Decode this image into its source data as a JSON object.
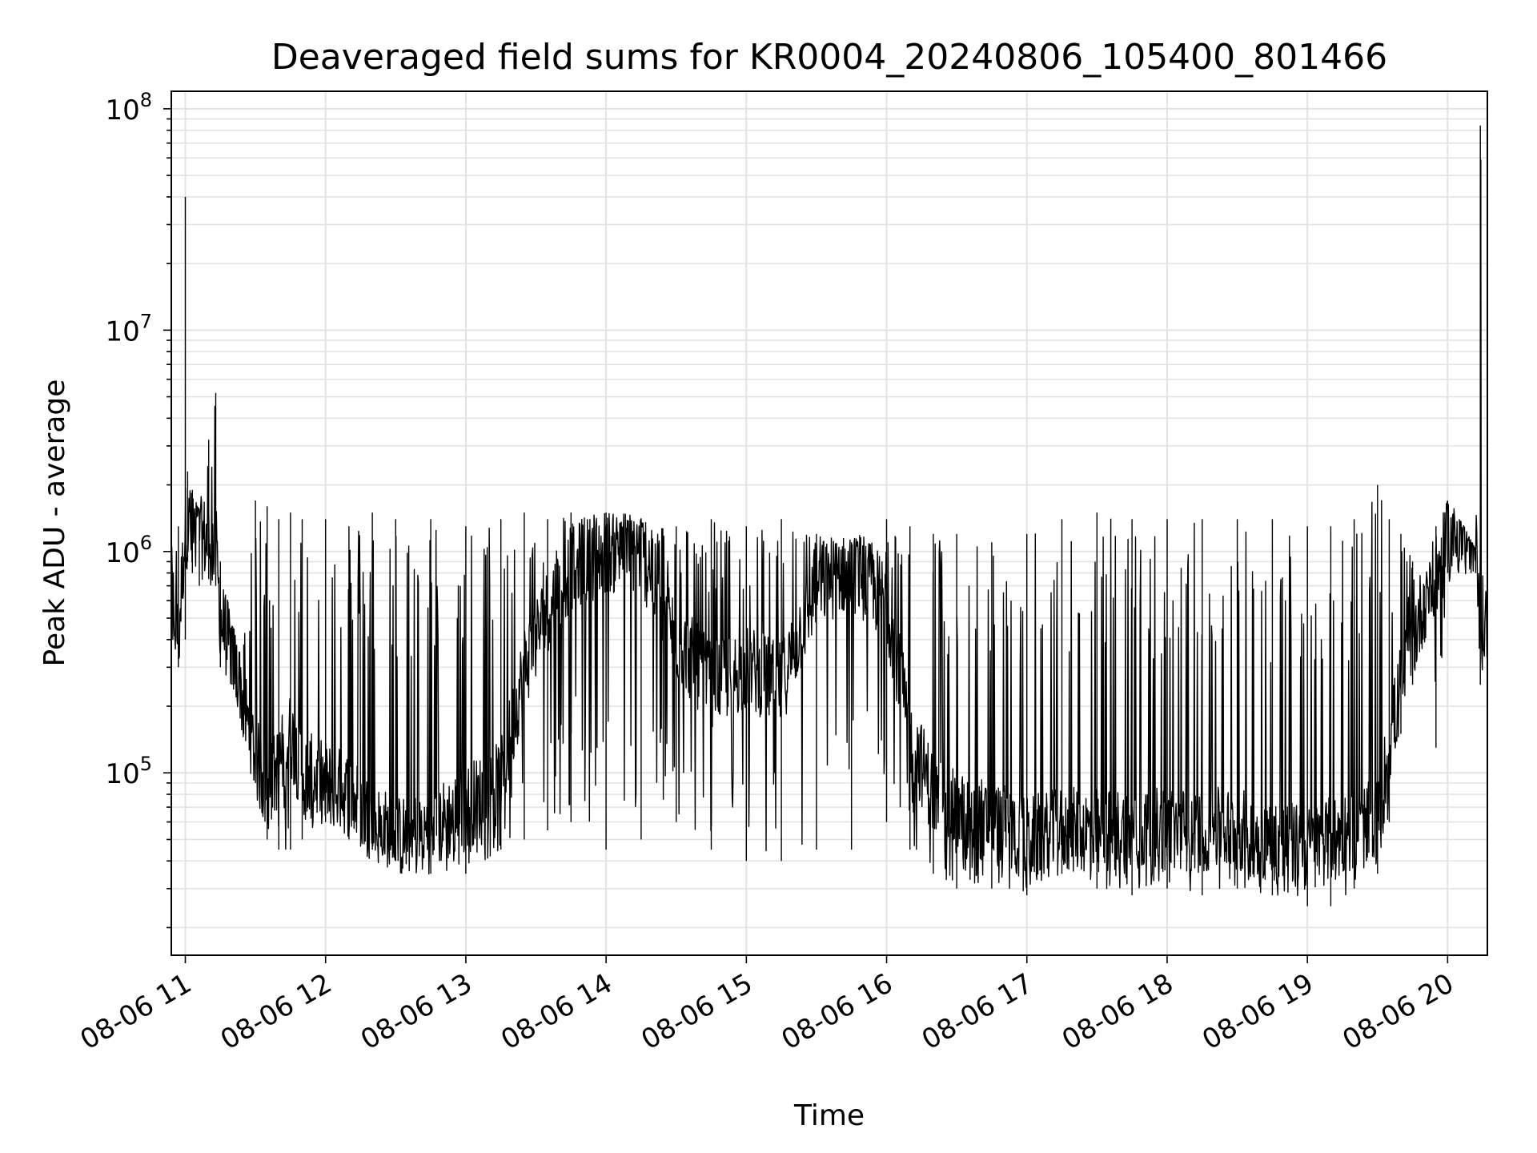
{
  "chart_data": {
    "type": "line",
    "title": "Deaveraged field sums for KR0004_20240806_105400_801466",
    "xlabel": "Time",
    "ylabel": "Peak ADU - average",
    "yscale": "log",
    "ylim": [
      15000,
      120000000
    ],
    "xlim": [
      "08-06 10:54",
      "08-06 20:17"
    ],
    "grid": true,
    "line_color": "#000000",
    "grid_color": "#e3e3e3",
    "x_ticks": [
      "08-06 11",
      "08-06 12",
      "08-06 13",
      "08-06 14",
      "08-06 15",
      "08-06 16",
      "08-06 17",
      "08-06 18",
      "08-06 19",
      "08-06 20"
    ],
    "y_ticks": [
      {
        "base": "10",
        "exp": "5",
        "value": 100000
      },
      {
        "base": "10",
        "exp": "6",
        "value": 1000000
      },
      {
        "base": "10",
        "exp": "7",
        "value": 10000000
      },
      {
        "base": "10",
        "exp": "8",
        "value": 100000000
      }
    ],
    "series": [
      {
        "x": [
          "08-06 10:54",
          "08-06 10:57",
          "08-06 11:00",
          "08-06 11:01",
          "08-06 11:03",
          "08-06 11:06",
          "08-06 11:10",
          "08-06 11:13",
          "08-06 11:15",
          "08-06 11:20",
          "08-06 11:25",
          "08-06 11:30",
          "08-06 11:35",
          "08-06 11:40",
          "08-06 11:45",
          "08-06 11:50",
          "08-06 12:00",
          "08-06 12:10",
          "08-06 12:20",
          "08-06 12:30",
          "08-06 12:45",
          "08-06 13:00",
          "08-06 13:15",
          "08-06 13:25",
          "08-06 13:35",
          "08-06 13:45",
          "08-06 14:00",
          "08-06 14:15",
          "08-06 14:30",
          "08-06 14:45",
          "08-06 15:00",
          "08-06 15:15",
          "08-06 15:30",
          "08-06 15:45",
          "08-06 16:00",
          "08-06 16:10",
          "08-06 16:20",
          "08-06 16:30",
          "08-06 16:45",
          "08-06 17:00",
          "08-06 17:15",
          "08-06 17:30",
          "08-06 17:45",
          "08-06 18:00",
          "08-06 18:15",
          "08-06 18:30",
          "08-06 18:45",
          "08-06 19:00",
          "08-06 19:10",
          "08-06 19:20",
          "08-06 19:30",
          "08-06 19:35",
          "08-06 19:40",
          "08-06 19:45",
          "08-06 19:50",
          "08-06 19:55",
          "08-06 20:00",
          "08-06 20:05",
          "08-06 20:10",
          "08-06 20:12",
          "08-06 20:14",
          "08-06 20:17"
        ],
        "peak": [
          1200000,
          1300000,
          40000000,
          2300000,
          1900000,
          1500000,
          3200000,
          5200000,
          900000,
          450000,
          380000,
          1700000,
          1600000,
          1400000,
          1500000,
          1400000,
          1400000,
          1300000,
          1500000,
          1400000,
          1400000,
          1300000,
          1400000,
          1500000,
          1400000,
          1500000,
          1500000,
          1400000,
          1300000,
          1400000,
          1300000,
          1400000,
          1200000,
          1100000,
          1400000,
          1300000,
          1200000,
          1200000,
          1100000,
          1200000,
          1400000,
          1500000,
          1400000,
          1400000,
          1400000,
          1400000,
          1400000,
          1300000,
          1300000,
          1400000,
          2000000,
          1400000,
          1200000,
          900000,
          700000,
          1300000,
          1700000,
          1400000,
          1100000,
          1000000,
          84000000,
          1500000
        ],
        "level": [
          700000,
          400000,
          1300000,
          1300000,
          1200000,
          1200000,
          1100000,
          1100000,
          500000,
          350000,
          200000,
          120000,
          80000,
          110000,
          150000,
          100000,
          90000,
          80000,
          60000,
          50000,
          55000,
          70000,
          90000,
          300000,
          550000,
          850000,
          1000000,
          1000000,
          400000,
          250000,
          300000,
          250000,
          700000,
          850000,
          600000,
          150000,
          80000,
          65000,
          60000,
          50000,
          55000,
          55000,
          55000,
          55000,
          55000,
          55000,
          50000,
          45000,
          50000,
          55000,
          60000,
          130000,
          250000,
          400000,
          600000,
          750000,
          1100000,
          1200000,
          1000000,
          1000000,
          700000,
          400000
        ],
        "trough": [
          280000,
          300000,
          400000,
          900000,
          800000,
          700000,
          750000,
          700000,
          300000,
          250000,
          150000,
          90000,
          50000,
          45000,
          45000,
          50000,
          60000,
          50000,
          45000,
          40000,
          35000,
          35000,
          45000,
          50000,
          55000,
          60000,
          45000,
          50000,
          60000,
          45000,
          40000,
          40000,
          45000,
          45000,
          60000,
          45000,
          35000,
          30000,
          30000,
          28000,
          35000,
          30000,
          28000,
          30000,
          28000,
          30000,
          28000,
          25000,
          25000,
          30000,
          35000,
          60000,
          150000,
          250000,
          450000,
          130000,
          800000,
          900000,
          800000,
          800000,
          250000,
          300000
        ]
      }
    ]
  }
}
